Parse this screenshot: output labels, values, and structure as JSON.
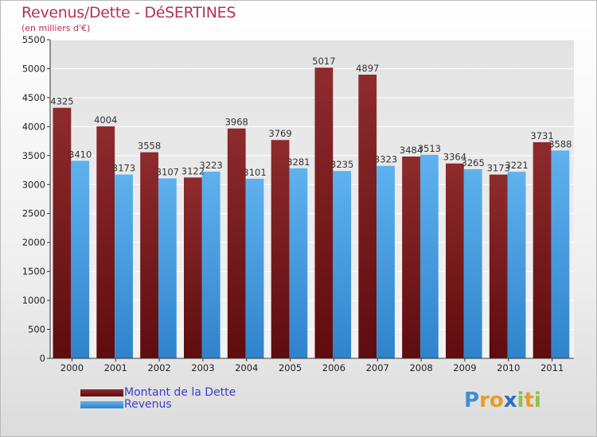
{
  "title": "Revenus/Dette - DéSERTINES",
  "unit_label": "(en milliers d'€)",
  "colors": {
    "debt": "#7a1a1c",
    "revenue": "#4aa3e6",
    "title": "#b5324f",
    "legend_text": "#3a3fc9"
  },
  "legend": {
    "debt_label": "Montant de la Dette",
    "revenue_label": "Revenus"
  },
  "logo": {
    "text": "Proxiti",
    "letters": [
      "P",
      "r",
      "o",
      "x",
      "i",
      "t",
      "i"
    ]
  },
  "chart_data": {
    "type": "bar",
    "title": "Revenus/Dette - DéSERTINES",
    "ylabel": "(en milliers d'€)",
    "xlabel": "",
    "categories": [
      "2000",
      "2001",
      "2002",
      "2003",
      "2004",
      "2005",
      "2006",
      "2007",
      "2008",
      "2009",
      "2010",
      "2011"
    ],
    "series": [
      {
        "name": "Montant de la Dette",
        "values": [
          4325,
          4004,
          3558,
          3122,
          3968,
          3769,
          5017,
          4897,
          3484,
          3364,
          3173,
          3731
        ]
      },
      {
        "name": "Revenus",
        "values": [
          3410,
          3173,
          3107,
          3223,
          3101,
          3281,
          3235,
          3323,
          3513,
          3265,
          3221,
          3588
        ]
      }
    ],
    "ylim": [
      0,
      5500
    ],
    "yticks": [
      0,
      500,
      1000,
      1500,
      2000,
      2500,
      3000,
      3500,
      4000,
      4500,
      5000,
      5500
    ],
    "grid": true,
    "legend_position": "bottom-left"
  }
}
